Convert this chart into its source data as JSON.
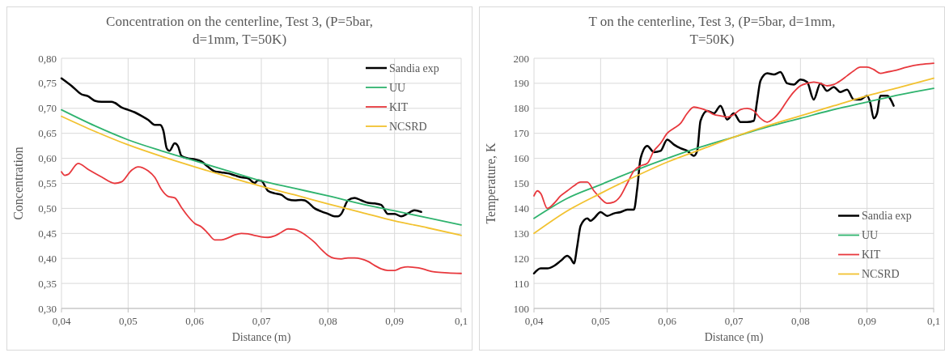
{
  "chart_data": [
    {
      "type": "line",
      "title": "Concentration on the centerline, Test 3, (P=5bar, d=1mm, T=50K)",
      "xlabel": "Distance (m)",
      "ylabel": "Concentration",
      "xlim": [
        0.04,
        0.1
      ],
      "xticks": [
        {
          "value": 0.04,
          "label": "0,04"
        },
        {
          "value": 0.05,
          "label": "0,05"
        },
        {
          "value": 0.06,
          "label": "0,06"
        },
        {
          "value": 0.07,
          "label": "0,07"
        },
        {
          "value": 0.08,
          "label": "0,08"
        },
        {
          "value": 0.09,
          "label": "0,09"
        },
        {
          "value": 0.1,
          "label": "0,1"
        }
      ],
      "ylim": [
        0.3,
        0.8
      ],
      "yticks": [
        {
          "value": 0.3,
          "label": "0,30"
        },
        {
          "value": 0.35,
          "label": "0,35"
        },
        {
          "value": 0.4,
          "label": "0,40"
        },
        {
          "value": 0.45,
          "label": "0,45"
        },
        {
          "value": 0.5,
          "label": "0,50"
        },
        {
          "value": 0.55,
          "label": "0,55"
        },
        {
          "value": 0.6,
          "label": "0,60"
        },
        {
          "value": 0.65,
          "label": "0,65"
        },
        {
          "value": 0.7,
          "label": "0,70"
        },
        {
          "value": 0.75,
          "label": "0,75"
        },
        {
          "value": 0.8,
          "label": "0,80"
        }
      ],
      "grid": true,
      "legend": "top right",
      "line_style": "solid",
      "marker": "none",
      "series": [
        {
          "name": "Sandia exp",
          "color": "#000000",
          "x": [
            0.04,
            0.0415,
            0.043,
            0.044,
            0.045,
            0.046,
            0.0475,
            0.048,
            0.049,
            0.05,
            0.051,
            0.052,
            0.053,
            0.054,
            0.0548,
            0.0553,
            0.0558,
            0.0562,
            0.057,
            0.0575,
            0.058,
            0.059,
            0.06,
            0.061,
            0.062,
            0.063,
            0.064,
            0.065,
            0.066,
            0.067,
            0.068,
            0.069,
            0.0695,
            0.07,
            0.071,
            0.072,
            0.073,
            0.074,
            0.075,
            0.076,
            0.0765,
            0.077,
            0.078,
            0.079,
            0.08,
            0.081,
            0.0815,
            0.082,
            0.083,
            0.084,
            0.085,
            0.086,
            0.087,
            0.088,
            0.089,
            0.09,
            0.091,
            0.092,
            0.093,
            0.094
          ],
          "values": [
            0.76,
            0.745,
            0.728,
            0.724,
            0.715,
            0.713,
            0.713,
            0.711,
            0.702,
            0.697,
            0.692,
            0.685,
            0.677,
            0.667,
            0.667,
            0.655,
            0.62,
            0.615,
            0.63,
            0.624,
            0.605,
            0.6,
            0.598,
            0.594,
            0.583,
            0.574,
            0.572,
            0.57,
            0.566,
            0.562,
            0.56,
            0.551,
            0.556,
            0.555,
            0.535,
            0.53,
            0.527,
            0.518,
            0.516,
            0.517,
            0.516,
            0.512,
            0.5,
            0.494,
            0.489,
            0.484,
            0.484,
            0.489,
            0.516,
            0.521,
            0.516,
            0.511,
            0.51,
            0.507,
            0.489,
            0.489,
            0.484,
            0.49,
            0.496,
            0.493
          ]
        },
        {
          "name": "UU",
          "color": "#2fb36e",
          "x": [
            0.04,
            0.045,
            0.05,
            0.055,
            0.06,
            0.065,
            0.07,
            0.075,
            0.08,
            0.085,
            0.09,
            0.095,
            0.1
          ],
          "values": [
            0.697,
            0.665,
            0.637,
            0.615,
            0.595,
            0.575,
            0.555,
            0.54,
            0.525,
            0.509,
            0.495,
            0.481,
            0.467
          ]
        },
        {
          "name": "KIT",
          "color": "#e8383d",
          "x": [
            0.04,
            0.0405,
            0.041,
            0.0425,
            0.044,
            0.046,
            0.048,
            0.049,
            0.0505,
            0.0515,
            0.053,
            0.054,
            0.055,
            0.056,
            0.057,
            0.058,
            0.059,
            0.06,
            0.061,
            0.062,
            0.063,
            0.064,
            0.065,
            0.066,
            0.067,
            0.068,
            0.069,
            0.07,
            0.071,
            0.072,
            0.073,
            0.074,
            0.075,
            0.076,
            0.077,
            0.078,
            0.079,
            0.08,
            0.081,
            0.082,
            0.083,
            0.084,
            0.085,
            0.086,
            0.087,
            0.088,
            0.089,
            0.09,
            0.091,
            0.092,
            0.093,
            0.094,
            0.095,
            0.096,
            0.098,
            0.1
          ],
          "values": [
            0.573,
            0.566,
            0.568,
            0.59,
            0.578,
            0.563,
            0.55,
            0.553,
            0.576,
            0.583,
            0.575,
            0.562,
            0.538,
            0.524,
            0.521,
            0.502,
            0.484,
            0.47,
            0.463,
            0.45,
            0.437,
            0.437,
            0.441,
            0.447,
            0.45,
            0.449,
            0.446,
            0.443,
            0.442,
            0.445,
            0.452,
            0.459,
            0.458,
            0.452,
            0.443,
            0.432,
            0.418,
            0.406,
            0.4,
            0.399,
            0.401,
            0.401,
            0.399,
            0.394,
            0.386,
            0.379,
            0.376,
            0.376,
            0.381,
            0.383,
            0.382,
            0.38,
            0.376,
            0.373,
            0.371,
            0.37
          ]
        },
        {
          "name": "NCSRD",
          "color": "#f2c230",
          "x": [
            0.04,
            0.045,
            0.05,
            0.055,
            0.06,
            0.065,
            0.07,
            0.075,
            0.08,
            0.085,
            0.09,
            0.095,
            0.1
          ],
          "values": [
            0.684,
            0.654,
            0.627,
            0.604,
            0.583,
            0.563,
            0.544,
            0.527,
            0.509,
            0.492,
            0.475,
            0.461,
            0.446
          ]
        }
      ]
    },
    {
      "type": "line",
      "title": "T on the centerline, Test 3, (P=5bar, d=1mm, T=50K)",
      "xlabel": "Distance (m)",
      "ylabel": "Temperature, K",
      "xlim": [
        0.04,
        0.1
      ],
      "xticks": [
        {
          "value": 0.04,
          "label": "0,04"
        },
        {
          "value": 0.05,
          "label": "0,05"
        },
        {
          "value": 0.06,
          "label": "0,06"
        },
        {
          "value": 0.07,
          "label": "0,07"
        },
        {
          "value": 0.08,
          "label": "0,08"
        },
        {
          "value": 0.09,
          "label": "0,09"
        },
        {
          "value": 0.1,
          "label": "0,1"
        }
      ],
      "ylim": [
        100,
        200
      ],
      "yticks": [
        100,
        110,
        120,
        130,
        140,
        150,
        160,
        170,
        180,
        190,
        200
      ],
      "grid": true,
      "legend": "right",
      "line_style": "solid",
      "marker": "none",
      "series": [
        {
          "name": "Sandia exp",
          "color": "#000000",
          "x": [
            0.04,
            0.041,
            0.042,
            0.043,
            0.044,
            0.045,
            0.0455,
            0.046,
            0.0465,
            0.047,
            0.048,
            0.0485,
            0.049,
            0.05,
            0.051,
            0.052,
            0.053,
            0.054,
            0.055,
            0.0555,
            0.056,
            0.057,
            0.058,
            0.059,
            0.06,
            0.061,
            0.062,
            0.063,
            0.064,
            0.0645,
            0.065,
            0.066,
            0.067,
            0.068,
            0.069,
            0.07,
            0.071,
            0.072,
            0.073,
            0.0735,
            0.074,
            0.075,
            0.076,
            0.077,
            0.078,
            0.079,
            0.08,
            0.081,
            0.082,
            0.083,
            0.084,
            0.085,
            0.086,
            0.087,
            0.088,
            0.089,
            0.09,
            0.0905,
            0.091,
            0.0915,
            0.092,
            0.093,
            0.094
          ],
          "values": [
            114,
            116,
            116,
            117,
            119,
            121,
            120,
            118,
            125,
            133,
            136,
            135,
            136,
            138.5,
            137,
            138,
            138.5,
            139.5,
            139.5,
            148,
            160,
            165,
            162.5,
            163,
            167.5,
            165.5,
            164,
            163,
            161,
            163,
            175,
            179,
            178,
            181,
            175.5,
            178,
            174.5,
            174.5,
            175,
            183,
            191,
            194,
            193.5,
            194.5,
            190,
            189.5,
            191.5,
            190.5,
            183.5,
            190,
            187,
            188.5,
            186.5,
            187.5,
            183.5,
            183.5,
            185,
            182,
            176,
            178,
            185,
            185,
            181
          ]
        },
        {
          "name": "UU",
          "color": "#2fb36e",
          "x": [
            0.04,
            0.045,
            0.05,
            0.055,
            0.06,
            0.065,
            0.07,
            0.075,
            0.08,
            0.085,
            0.09,
            0.095,
            0.1
          ],
          "values": [
            136,
            144,
            149.5,
            155,
            160,
            164.5,
            168.5,
            172.5,
            176,
            179.5,
            182.5,
            185.5,
            188
          ]
        },
        {
          "name": "KIT",
          "color": "#e8383d",
          "x": [
            0.04,
            0.0405,
            0.041,
            0.042,
            0.043,
            0.044,
            0.045,
            0.046,
            0.047,
            0.048,
            0.049,
            0.05,
            0.051,
            0.052,
            0.053,
            0.054,
            0.055,
            0.056,
            0.057,
            0.058,
            0.059,
            0.06,
            0.061,
            0.062,
            0.063,
            0.064,
            0.065,
            0.066,
            0.067,
            0.068,
            0.069,
            0.07,
            0.071,
            0.072,
            0.073,
            0.074,
            0.075,
            0.076,
            0.077,
            0.078,
            0.079,
            0.08,
            0.081,
            0.082,
            0.083,
            0.084,
            0.085,
            0.086,
            0.087,
            0.088,
            0.089,
            0.09,
            0.091,
            0.092,
            0.093,
            0.094,
            0.096,
            0.098,
            0.1
          ],
          "values": [
            145,
            147,
            146,
            140,
            142,
            145,
            147,
            149,
            150.5,
            150.5,
            147,
            144,
            142,
            142.5,
            145,
            150,
            155,
            157,
            158,
            163,
            166,
            170,
            172,
            174,
            178,
            180.5,
            180,
            179,
            177.5,
            177,
            176.5,
            177.5,
            179.5,
            180,
            179,
            176,
            174.5,
            176,
            179,
            183,
            186.5,
            189,
            190,
            190.5,
            190,
            189,
            189.5,
            191,
            193,
            195,
            196.5,
            196.5,
            195.5,
            194,
            194.5,
            195,
            196.5,
            197.5,
            198
          ]
        },
        {
          "name": "NCSRD",
          "color": "#f2c230",
          "x": [
            0.04,
            0.045,
            0.05,
            0.055,
            0.06,
            0.065,
            0.07,
            0.075,
            0.08,
            0.085,
            0.09,
            0.095,
            0.1
          ],
          "values": [
            130,
            139,
            146,
            152.5,
            158.5,
            163.5,
            168.5,
            173,
            177,
            181,
            185,
            188.5,
            192
          ]
        }
      ]
    }
  ]
}
